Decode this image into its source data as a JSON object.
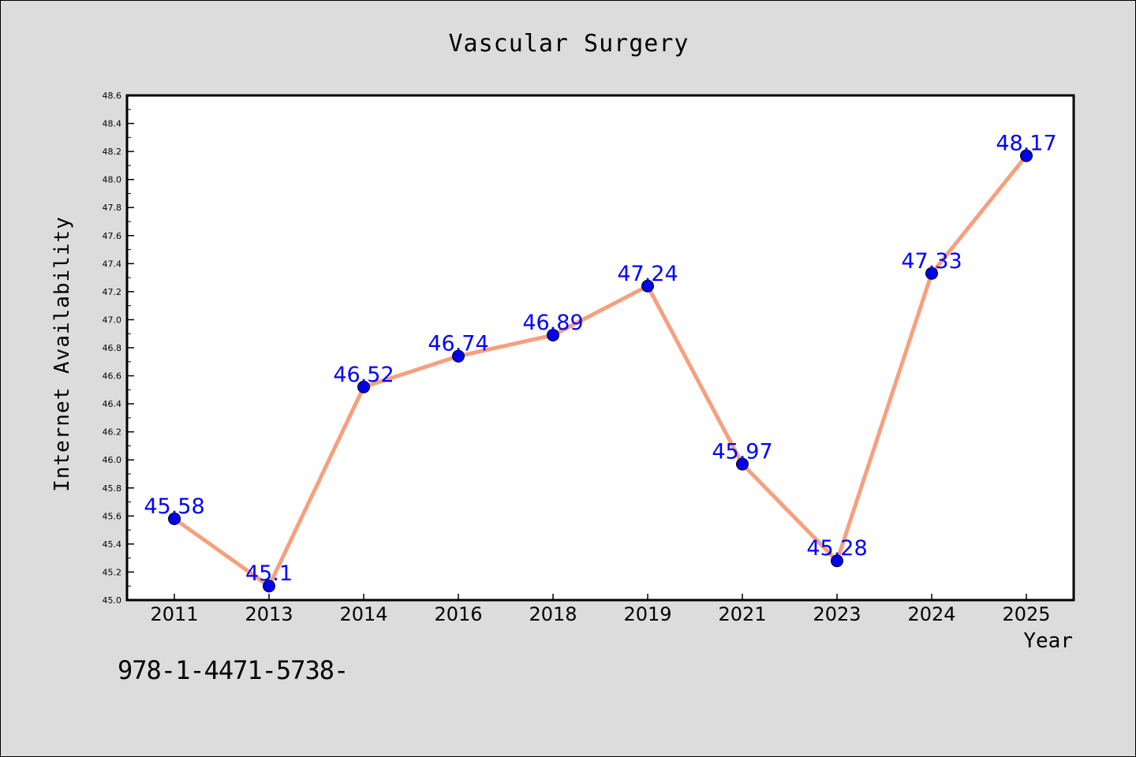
{
  "footnote": "978-1-4471-5738-",
  "colors": {
    "background": "#dcdcdc",
    "plot_background": "#ffffff",
    "line": "#f6a07e",
    "marker": "#0000ee",
    "label": "#0000ff"
  },
  "chart_data": {
    "type": "line",
    "title": "Vascular Surgery",
    "xlabel": "Year",
    "ylabel": "Internet Availability",
    "categories": [
      "2011",
      "2013",
      "2014",
      "2016",
      "2018",
      "2019",
      "2021",
      "2023",
      "2024",
      "2025"
    ],
    "values": [
      45.58,
      45.1,
      46.52,
      46.74,
      46.89,
      47.24,
      45.97,
      45.28,
      47.33,
      48.17
    ],
    "data_labels": [
      "45.58",
      "45.1",
      "46.52",
      "46.74",
      "46.89",
      "47.24",
      "45.97",
      "45.28",
      "47.33",
      "48.17"
    ],
    "ylim": [
      45.0,
      48.6
    ],
    "yticks": [
      "45.0",
      "45.2",
      "45.4",
      "45.6",
      "45.8",
      "46.0",
      "46.2",
      "46.4",
      "46.6",
      "46.8",
      "47.0",
      "47.2",
      "47.4",
      "47.6",
      "47.8",
      "48.0",
      "48.2",
      "48.4",
      "48.6"
    ],
    "grid": false,
    "legend": "none"
  }
}
